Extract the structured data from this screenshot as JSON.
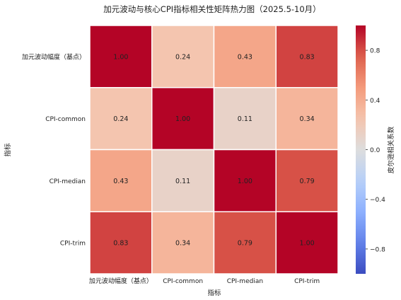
{
  "chart_data": {
    "type": "heatmap",
    "title": "加元波动与核心CPI指标相关性矩阵热力图（2025.5-10月）",
    "xlabel": "指标",
    "ylabel": "指标",
    "categories": [
      "加元波动幅度（基点）",
      "CPI-common",
      "CPI-median",
      "CPI-trim"
    ],
    "values": [
      [
        1.0,
        0.24,
        0.43,
        0.83
      ],
      [
        0.24,
        1.0,
        0.11,
        0.34
      ],
      [
        0.43,
        0.11,
        1.0,
        0.79
      ],
      [
        0.83,
        0.34,
        0.79,
        1.0
      ]
    ],
    "value_range": [
      -1,
      1
    ],
    "colorbar": {
      "label": "皮尔逊相关系数",
      "ticks": [
        0.8,
        0.4,
        0.0,
        -0.4,
        -0.8
      ],
      "tick_labels": [
        "0.8",
        "0.4",
        "0.0",
        "−0.4",
        "−0.8"
      ]
    },
    "colormap": "coolwarm",
    "annotation_format": "0.00",
    "colors": {
      "grid_line": "#ffffff",
      "text": "#222222"
    }
  }
}
